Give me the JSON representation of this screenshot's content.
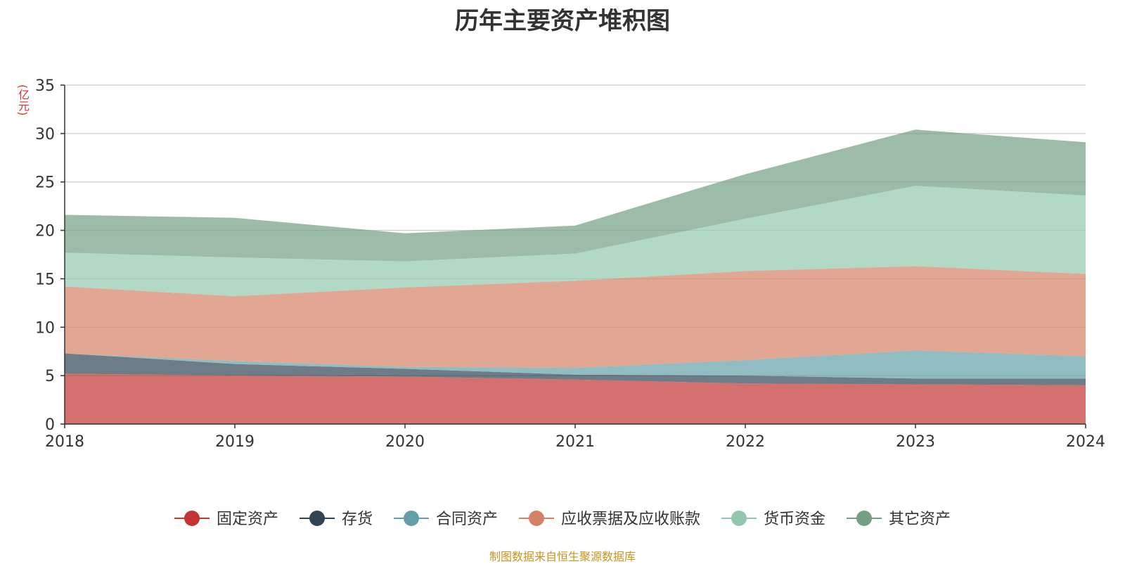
{
  "chart_data": {
    "type": "area",
    "stacked": true,
    "title": "历年主要资产堆积图",
    "unit_label": "(亿元)",
    "source_note": "制图数据来自恒生聚源数据库",
    "x": [
      "2018",
      "2019",
      "2020",
      "2021",
      "2022",
      "2023",
      "2024"
    ],
    "ylim": [
      0,
      35
    ],
    "yticks": [
      0,
      5,
      10,
      15,
      20,
      25,
      30,
      35
    ],
    "grid": true,
    "legend_position": "bottom",
    "series": [
      {
        "name": "固定资产",
        "color": "#c23531",
        "values": [
          5.2,
          5.0,
          4.9,
          4.6,
          4.2,
          4.1,
          4.0
        ]
      },
      {
        "name": "存货",
        "color": "#2f4554",
        "values": [
          2.1,
          1.2,
          0.8,
          0.5,
          0.8,
          0.6,
          0.7
        ]
      },
      {
        "name": "合同资产",
        "color": "#61a0a8",
        "values": [
          0.0,
          0.3,
          0.2,
          0.7,
          1.6,
          2.9,
          2.3
        ]
      },
      {
        "name": "应收票据及应收账款",
        "color": "#d48265",
        "values": [
          6.9,
          6.7,
          8.2,
          9.0,
          9.2,
          8.7,
          8.5
        ]
      },
      {
        "name": "货币资金",
        "color": "#91c7ae",
        "values": [
          3.5,
          4.0,
          2.7,
          2.8,
          5.4,
          8.3,
          8.1
        ]
      },
      {
        "name": "其它资产",
        "color": "#749f83",
        "values": [
          3.9,
          4.1,
          2.9,
          2.9,
          4.6,
          5.8,
          5.5
        ]
      }
    ]
  }
}
